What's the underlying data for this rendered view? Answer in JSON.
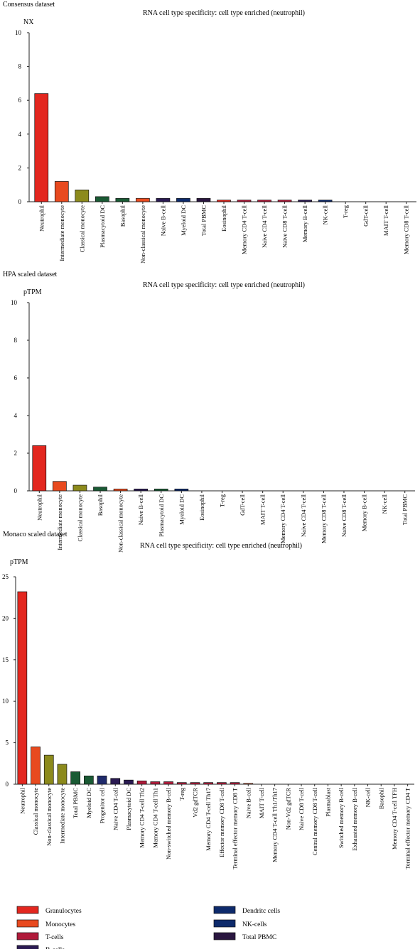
{
  "chart_data": [
    {
      "type": "bar",
      "dataset_label": "Consensus dataset",
      "title": "RNA cell type specificity: cell type enriched (neutrophil)",
      "ylabel": "NX",
      "ylim": [
        0,
        10
      ],
      "yticks": [
        0,
        2,
        4,
        6,
        8,
        10
      ],
      "categories": [
        "Neutrophil",
        "Intermediate monocyte",
        "Classical monocyte",
        "Plasmacytoid DC",
        "Basophil",
        "Non-classical monocyte",
        "Naive B-cell",
        "Myeloid DC",
        "Total PBMC",
        "Eosinophil",
        "Memory CD4 T-cell",
        "Naive CD4 T-cell",
        "Naive CD8 T-cell",
        "Memory B-cell",
        "NK-cell",
        "T-reg",
        "GdT-cell",
        "MAIT T-cell",
        "Memory CD8 T-cell"
      ],
      "values": [
        6.4,
        1.2,
        0.7,
        0.3,
        0.2,
        0.2,
        0.2,
        0.2,
        0.2,
        0.1,
        0.1,
        0.1,
        0.1,
        0.1,
        0.1,
        0,
        0,
        0,
        0
      ],
      "colors": [
        "#e3271f",
        "#e84a1f",
        "#8c8a1c",
        "#1a5a34",
        "#1a5a34",
        "#e84a1f",
        "#2a1a52",
        "#0d2a6b",
        "#2a1640",
        "#e3271f",
        "#b01a3a",
        "#b01a3a",
        "#b01a3a",
        "#2a1a52",
        "#0d2a6b",
        "#b01a3a",
        "#b01a3a",
        "#b01a3a",
        "#b01a3a"
      ]
    },
    {
      "type": "bar",
      "dataset_label": "HPA scaled dataset",
      "title": "RNA cell type specificity: cell type enriched (neutrophil)",
      "ylabel": "pTPM",
      "ylim": [
        0,
        10
      ],
      "yticks": [
        0,
        2,
        4,
        6,
        8,
        10
      ],
      "categories": [
        "Neutrophil",
        "Intermediate monocyte",
        "Classical monocyte",
        "Basophil",
        "Non-classical monocyte",
        "Naive B-cell",
        "Plasmacytoid DC",
        "Myeloid DC",
        "Eosinophil",
        "T-reg",
        "GdT-cell",
        "MAIT T-cell",
        "Memory CD4 T-cell",
        "Naive CD4 T-cell",
        "Memory CD8 T-cell",
        "Naive CD8 T-cell",
        "Memory B-cell",
        "NK-cell",
        "Total PBMC"
      ],
      "values": [
        2.4,
        0.5,
        0.3,
        0.2,
        0.1,
        0.1,
        0.1,
        0.1,
        0,
        0,
        0,
        0,
        0,
        0,
        0,
        0,
        0,
        0,
        0
      ],
      "colors": [
        "#e3271f",
        "#e84a1f",
        "#8c8a1c",
        "#1a5a34",
        "#e84a1f",
        "#2a1a52",
        "#1a5a34",
        "#0d2a6b",
        "#e3271f",
        "#b01a3a",
        "#b01a3a",
        "#b01a3a",
        "#b01a3a",
        "#b01a3a",
        "#b01a3a",
        "#b01a3a",
        "#2a1a52",
        "#0d2a6b",
        "#2a1640"
      ]
    },
    {
      "type": "bar",
      "dataset_label": "Monaco scaled dataset",
      "title": "RNA cell type specificity: cell type enriched (neutrophil)",
      "ylabel": "pTPM",
      "ylim": [
        0,
        25
      ],
      "yticks": [
        0,
        5,
        10,
        15,
        20,
        25
      ],
      "categories": [
        "Neutrophil",
        "Classical monocyte",
        "Non-classical monocyte",
        "Intermediate monocyte",
        "Total PBMC",
        "Myeloid DC",
        "Progenitor cell",
        "Naive CD4 T-cell",
        "Plasmacytoid DC",
        "Memory CD4 T-cell Th2",
        "Memory CD4 T-cell Th1",
        "Non-switched memory B-cell",
        "T-reg",
        "Vd2 gdTCR",
        "Memory CD4 T-cell Th17",
        "Effector memory CD8 T-cell",
        "Terminal effector memory CD8 T",
        "Naive B-cell",
        "MAIT T-cell",
        "Memory CD4 T-cell Th1/Th17",
        "Non-Vd2 gdTCR",
        "Naive CD8 T-cell",
        "Central memory CD8 T-cell",
        "Plasmablast",
        "Switched memory B-cell",
        "Exhausted memory B-cell",
        "NK-cell",
        "Basophil",
        "Memory CD4 T-cell TFH",
        "Terminal effector memory CD4 T"
      ],
      "values": [
        23.2,
        4.5,
        3.5,
        2.4,
        1.5,
        1.0,
        1.0,
        0.7,
        0.5,
        0.4,
        0.3,
        0.3,
        0.2,
        0.2,
        0.2,
        0.2,
        0.2,
        0.1,
        0,
        0,
        0,
        0,
        0,
        0,
        0,
        0,
        0,
        0,
        0,
        0
      ],
      "colors": [
        "#e3271f",
        "#e84a1f",
        "#8c8a1c",
        "#8c8a1c",
        "#1a5a34",
        "#1a5a34",
        "#1f2a6b",
        "#2a1a52",
        "#2a1a52",
        "#b01a3a",
        "#b01a3a",
        "#b01a3a",
        "#b01a3a",
        "#b01a3a",
        "#b01a3a",
        "#b01a3a",
        "#b01a3a",
        "#e84a1f",
        "#b01a3a",
        "#b01a3a",
        "#b01a3a",
        "#b01a3a",
        "#b01a3a",
        "#2a1a52",
        "#2a1a52",
        "#2a1a52",
        "#0d2a6b",
        "#e3271f",
        "#b01a3a",
        "#b01a3a"
      ]
    }
  ],
  "legend": [
    {
      "label": "Granulocytes",
      "color": "#e3271f"
    },
    {
      "label": "Monocytes",
      "color": "#e84a1f"
    },
    {
      "label": "T-cells",
      "color": "#b01a3a"
    },
    {
      "label": "B-cells",
      "color": "#2a1a52"
    },
    {
      "label": "Dendritc cells",
      "color": "#0d2a6b"
    },
    {
      "label": "NK-cells",
      "color": "#0d2a6b"
    },
    {
      "label": "Total PBMC",
      "color": "#2a1640"
    }
  ]
}
